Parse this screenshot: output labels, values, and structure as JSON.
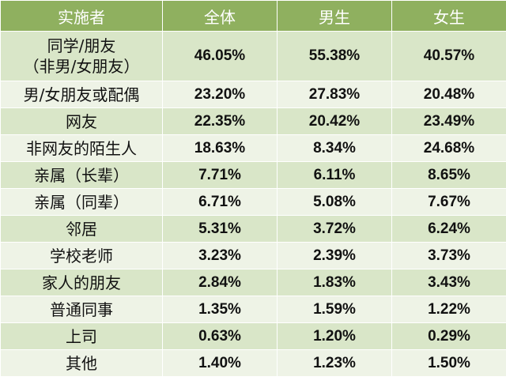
{
  "table": {
    "headers": [
      "实施者",
      "全体",
      "男生",
      "女生"
    ],
    "rows": [
      {
        "label_lines": [
          "同学/朋友",
          "（非男/女朋友）"
        ],
        "values": [
          "46.05%",
          "55.38%",
          "40.57%"
        ]
      },
      {
        "label_lines": [
          "男/女朋友或配偶"
        ],
        "values": [
          "23.20%",
          "27.83%",
          "20.48%"
        ]
      },
      {
        "label_lines": [
          "网友"
        ],
        "values": [
          "22.35%",
          "20.42%",
          "23.49%"
        ]
      },
      {
        "label_lines": [
          "非网友的陌生人"
        ],
        "values": [
          "18.63%",
          "8.34%",
          "24.68%"
        ]
      },
      {
        "label_lines": [
          "亲属（长辈）"
        ],
        "values": [
          "7.71%",
          "6.11%",
          "8.65%"
        ]
      },
      {
        "label_lines": [
          "亲属（同辈）"
        ],
        "values": [
          "6.71%",
          "5.08%",
          "7.67%"
        ]
      },
      {
        "label_lines": [
          "邻居"
        ],
        "values": [
          "5.31%",
          "3.72%",
          "6.24%"
        ]
      },
      {
        "label_lines": [
          "学校老师"
        ],
        "values": [
          "3.23%",
          "2.39%",
          "3.73%"
        ]
      },
      {
        "label_lines": [
          "家人的朋友"
        ],
        "values": [
          "2.84%",
          "1.83%",
          "3.43%"
        ]
      },
      {
        "label_lines": [
          "普通同事"
        ],
        "values": [
          "1.35%",
          "1.59%",
          "1.22%"
        ]
      },
      {
        "label_lines": [
          "上司"
        ],
        "values": [
          "0.63%",
          "1.20%",
          "0.29%"
        ]
      },
      {
        "label_lines": [
          "其他"
        ],
        "values": [
          "1.40%",
          "1.23%",
          "1.50%"
        ]
      }
    ]
  },
  "colors": {
    "header_bg": "#8fb05f",
    "row_dark": "#d9e6c8",
    "row_light": "#eef3e6"
  }
}
